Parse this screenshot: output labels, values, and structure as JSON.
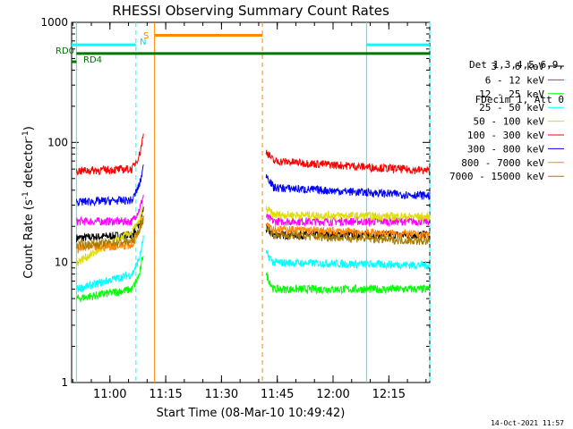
{
  "chart_data": {
    "type": "line",
    "title": "RHESSI Observing Summary Count Rates",
    "xlabel": "Start Time (08-Mar-10 10:49:42)",
    "ylabel_parts": [
      "Count Rate (s",
      "-1",
      " detector",
      "-1",
      ")"
    ],
    "y_scale": "log",
    "ylim": [
      1,
      1000
    ],
    "y_ticks": [
      1,
      10,
      100,
      1000
    ],
    "y_tick_labels": [
      "1",
      "10",
      "100",
      "1000"
    ],
    "x_range_minutes": [
      "10:49:42",
      "12:26"
    ],
    "x_ticks": [
      "11:00",
      "11:15",
      "11:30",
      "11:45",
      "12:00",
      "12:15"
    ],
    "legend_header": [
      "Det 1,3,4,5,6,9,",
      "FDecim 1, Att 0"
    ],
    "series": [
      {
        "name": "3 - 6 keV",
        "color": "#000000",
        "before": [
          [
            "10:51",
            16
          ],
          [
            "11:06",
            17
          ],
          [
            "11:08",
            21
          ],
          [
            "11:09",
            28
          ]
        ],
        "after": [
          [
            "11:42",
            19
          ],
          [
            "11:44",
            17
          ],
          [
            "12:26",
            17
          ]
        ]
      },
      {
        "name": "6 - 12 keV",
        "color": "#ff00ff",
        "before": [
          [
            "10:51",
            22
          ],
          [
            "11:06",
            22
          ],
          [
            "11:08",
            28
          ],
          [
            "11:09",
            36
          ]
        ],
        "after": [
          [
            "11:42",
            24
          ],
          [
            "11:44",
            22
          ],
          [
            "12:26",
            22
          ]
        ]
      },
      {
        "name": "12 - 25 keV",
        "color": "#00ff00",
        "before": [
          [
            "10:51",
            5
          ],
          [
            "11:06",
            6
          ],
          [
            "11:08",
            8
          ],
          [
            "11:09",
            12
          ]
        ],
        "after": [
          [
            "11:42",
            8
          ],
          [
            "11:44",
            6
          ],
          [
            "12:26",
            6
          ]
        ]
      },
      {
        "name": "25 - 50 keV",
        "color": "#00ffff",
        "before": [
          [
            "10:51",
            6
          ],
          [
            "11:06",
            8
          ],
          [
            "11:08",
            11
          ],
          [
            "11:09",
            16
          ]
        ],
        "after": [
          [
            "11:42",
            12
          ],
          [
            "11:44",
            10
          ],
          [
            "12:26",
            9.5
          ]
        ]
      },
      {
        "name": "50 - 100 keV",
        "color": "#dddd00",
        "before": [
          [
            "10:51",
            10
          ],
          [
            "11:06",
            18
          ],
          [
            "11:08",
            22
          ],
          [
            "11:09",
            30
          ]
        ],
        "after": [
          [
            "11:42",
            28
          ],
          [
            "11:44",
            25
          ],
          [
            "12:26",
            24
          ]
        ]
      },
      {
        "name": "100 - 300 keV",
        "color": "#ff0000",
        "before": [
          [
            "10:51",
            58
          ],
          [
            "11:06",
            60
          ],
          [
            "11:08",
            80
          ],
          [
            "11:09",
            115
          ]
        ],
        "after": [
          [
            "11:42",
            85
          ],
          [
            "11:44",
            70
          ],
          [
            "12:26",
            58
          ]
        ]
      },
      {
        "name": "300 - 800 keV",
        "color": "#0000ff",
        "before": [
          [
            "10:51",
            32
          ],
          [
            "11:06",
            33
          ],
          [
            "11:08",
            45
          ],
          [
            "11:09",
            62
          ]
        ],
        "after": [
          [
            "11:42",
            55
          ],
          [
            "11:44",
            42
          ],
          [
            "12:26",
            36
          ]
        ]
      },
      {
        "name": "800 - 7000 keV",
        "color": "#ff8800",
        "before": [
          [
            "10:51",
            13
          ],
          [
            "11:06",
            14
          ],
          [
            "11:08",
            19
          ],
          [
            "11:09",
            25
          ]
        ],
        "after": [
          [
            "11:42",
            22
          ],
          [
            "11:44",
            19
          ],
          [
            "12:26",
            17
          ]
        ]
      },
      {
        "name": "7000 - 15000 keV",
        "color": "#aa7a00",
        "before": [
          [
            "10:51",
            14
          ],
          [
            "11:06",
            15
          ],
          [
            "11:08",
            19
          ],
          [
            "11:09",
            23
          ]
        ],
        "after": [
          [
            "11:42",
            20
          ],
          [
            "11:44",
            17
          ],
          [
            "12:26",
            15
          ]
        ]
      }
    ],
    "annotations": [
      {
        "label": "RD0",
        "color": "#007700"
      },
      {
        "label": "RD4",
        "color": "#007700"
      },
      {
        "label": "N",
        "color": "#00dddd"
      },
      {
        "label": "S",
        "color": "#ff8800"
      }
    ],
    "flag_bars": [
      {
        "kind": "RD0 flag",
        "color": "#007700",
        "from": "10:51",
        "to": "12:26",
        "y": 550
      },
      {
        "kind": "night",
        "color": "#00ffff",
        "from": "10:49:42",
        "to": "11:07",
        "y": 650
      },
      {
        "kind": "SAA",
        "color": "#ff8800",
        "from": "11:12",
        "to": "11:41",
        "y": 780
      },
      {
        "kind": "night",
        "color": "#00ffff",
        "from": "12:09",
        "to": "12:26",
        "y": 650
      },
      {
        "kind": "RD4 flag",
        "color": "#007700",
        "from": "10:49:42",
        "to": "10:51",
        "y": 470
      }
    ],
    "vertical_markers": [
      {
        "time": "10:51",
        "color": "#00ffff",
        "style": "solid"
      },
      {
        "time": "11:07",
        "color": "#00ffff",
        "style": "dashed"
      },
      {
        "time": "11:12",
        "color": "#ff8800",
        "style": "solid"
      },
      {
        "time": "11:41",
        "color": "#ff8800",
        "style": "dashed"
      },
      {
        "time": "12:09",
        "color": "#00ffff",
        "style": "solid"
      },
      {
        "time": "12:26",
        "color": "#00ffff",
        "style": "dashed"
      }
    ]
  },
  "timestamp": "14-Oct-2021 11:57"
}
